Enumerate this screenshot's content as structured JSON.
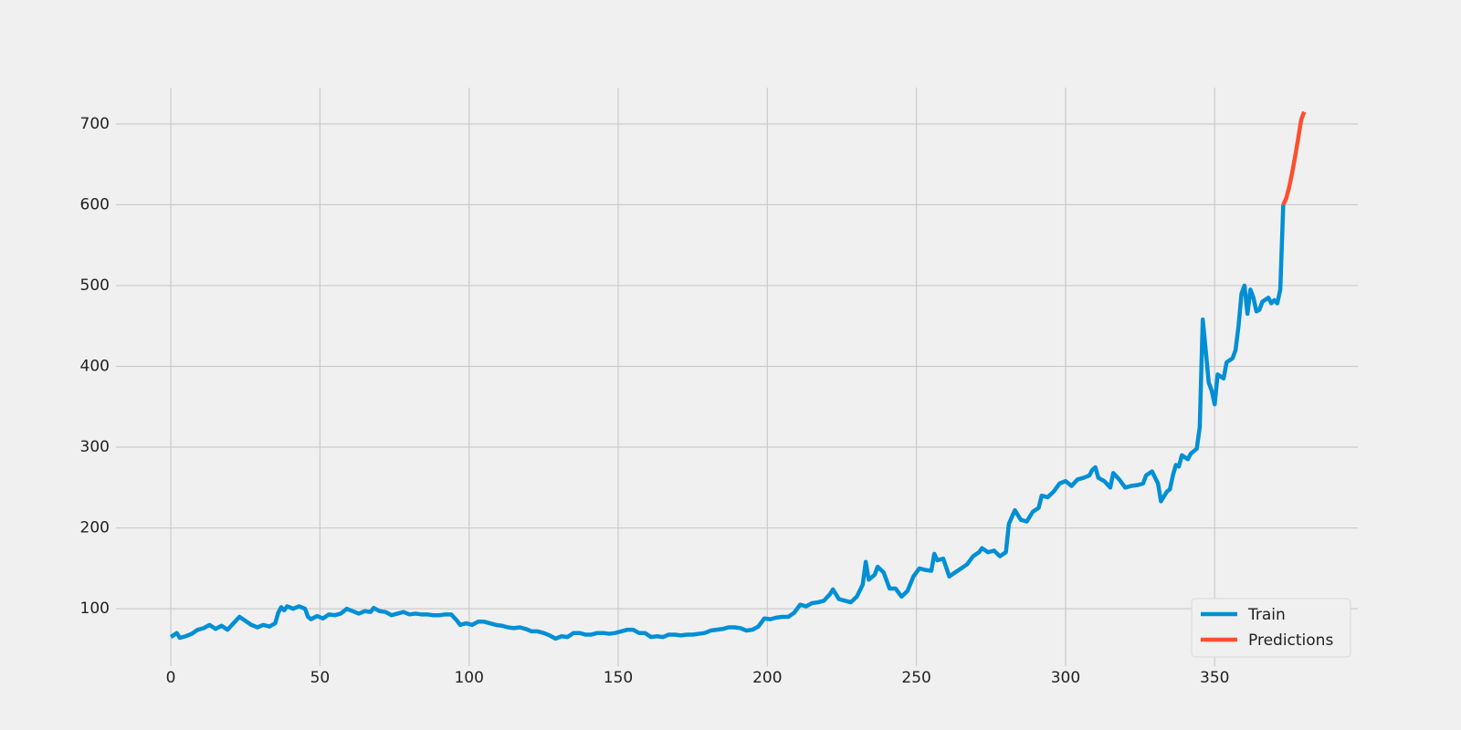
{
  "chart_data": {
    "type": "line",
    "xlim": [
      -18.4,
      398
    ],
    "xticks": [
      0,
      50,
      100,
      150,
      200,
      250,
      300,
      350
    ],
    "ylim": [
      29,
      745
    ],
    "yticks": [
      100,
      200,
      300,
      400,
      500,
      600,
      700
    ],
    "grid": true,
    "legend": "lower right",
    "series": [
      {
        "name": "Train",
        "color": "#008fd5",
        "x": [
          0,
          2,
          3,
          5,
          7,
          9,
          11,
          13,
          15,
          17,
          19,
          21,
          23,
          25,
          27,
          29,
          31,
          33,
          35,
          36,
          37,
          38,
          39,
          41,
          43,
          45,
          46,
          47,
          49,
          51,
          53,
          55,
          57,
          59,
          61,
          63,
          65,
          67,
          68,
          70,
          72,
          74,
          76,
          78,
          80,
          82,
          84,
          86,
          88,
          90,
          92,
          94,
          96,
          97,
          99,
          101,
          103,
          105,
          107,
          109,
          111,
          113,
          115,
          117,
          119,
          121,
          123,
          125,
          127,
          129,
          131,
          133,
          135,
          137,
          139,
          141,
          143,
          145,
          147,
          149,
          151,
          153,
          155,
          157,
          159,
          161,
          163,
          165,
          167,
          169,
          171,
          173,
          175,
          177,
          179,
          181,
          183,
          185,
          187,
          189,
          191,
          193,
          195,
          197,
          199,
          201,
          203,
          205,
          207,
          209,
          211,
          213,
          215,
          217,
          219,
          221,
          222,
          224,
          226,
          228,
          230,
          232,
          233,
          234,
          236,
          237,
          239,
          241,
          243,
          245,
          247,
          249,
          251,
          253,
          255,
          256,
          257,
          259,
          261,
          263,
          265,
          267,
          269,
          271,
          272,
          274,
          276,
          278,
          280,
          281,
          283,
          285,
          287,
          289,
          291,
          292,
          294,
          296,
          298,
          300,
          302,
          304,
          306,
          308,
          309,
          310,
          311,
          313,
          315,
          316,
          318,
          320,
          322,
          324,
          326,
          327,
          329,
          331,
          332,
          334,
          335,
          336,
          337,
          338,
          339,
          341,
          342,
          344,
          345,
          346,
          347,
          348,
          349,
          350,
          351,
          353,
          354,
          356,
          357,
          358,
          359,
          360,
          361,
          362,
          363,
          364,
          365,
          366,
          368,
          369,
          370,
          371,
          372,
          373
        ],
        "values": [
          65,
          70,
          64,
          66,
          69,
          74,
          76,
          80,
          75,
          79,
          74,
          82,
          90,
          85,
          80,
          77,
          80,
          78,
          82,
          95,
          102,
          98,
          103,
          100,
          103,
          100,
          90,
          87,
          91,
          88,
          93,
          92,
          94,
          100,
          97,
          94,
          97,
          96,
          101,
          97,
          96,
          92,
          94,
          96,
          93,
          94,
          93,
          93,
          92,
          92,
          93,
          93,
          85,
          80,
          82,
          80,
          84,
          84,
          82,
          80,
          79,
          77,
          76,
          77,
          75,
          72,
          72,
          70,
          67,
          63,
          66,
          65,
          70,
          70,
          68,
          68,
          70,
          70,
          69,
          70,
          72,
          74,
          74,
          70,
          70,
          65,
          66,
          65,
          68,
          68,
          67,
          68,
          68,
          69,
          70,
          73,
          74,
          75,
          77,
          77,
          76,
          73,
          74,
          78,
          88,
          87,
          89,
          90,
          90,
          95,
          105,
          103,
          107,
          108,
          110,
          118,
          124,
          112,
          110,
          108,
          115,
          130,
          158,
          136,
          142,
          152,
          145,
          125,
          125,
          115,
          122,
          140,
          150,
          148,
          147,
          168,
          160,
          162,
          140,
          145,
          150,
          155,
          165,
          170,
          175,
          170,
          172,
          165,
          170,
          205,
          222,
          210,
          208,
          220,
          225,
          240,
          238,
          245,
          255,
          258,
          252,
          260,
          262,
          265,
          272,
          275,
          262,
          258,
          250,
          268,
          260,
          250,
          252,
          253,
          255,
          265,
          270,
          255,
          233,
          245,
          248,
          265,
          278,
          276,
          290,
          285,
          292,
          298,
          325,
          458,
          420,
          380,
          370,
          353,
          390,
          385,
          405,
          410,
          420,
          450,
          490,
          500,
          465,
          495,
          485,
          468,
          470,
          480,
          485,
          478,
          482,
          478,
          495,
          600
        ]
      },
      {
        "name": "Predictions",
        "color": "#fc4f30",
        "x": [
          373,
          374,
          375,
          376,
          377,
          378,
          379,
          380
        ],
        "values": [
          600,
          608,
          622,
          640,
          660,
          682,
          705,
          715
        ]
      }
    ]
  }
}
